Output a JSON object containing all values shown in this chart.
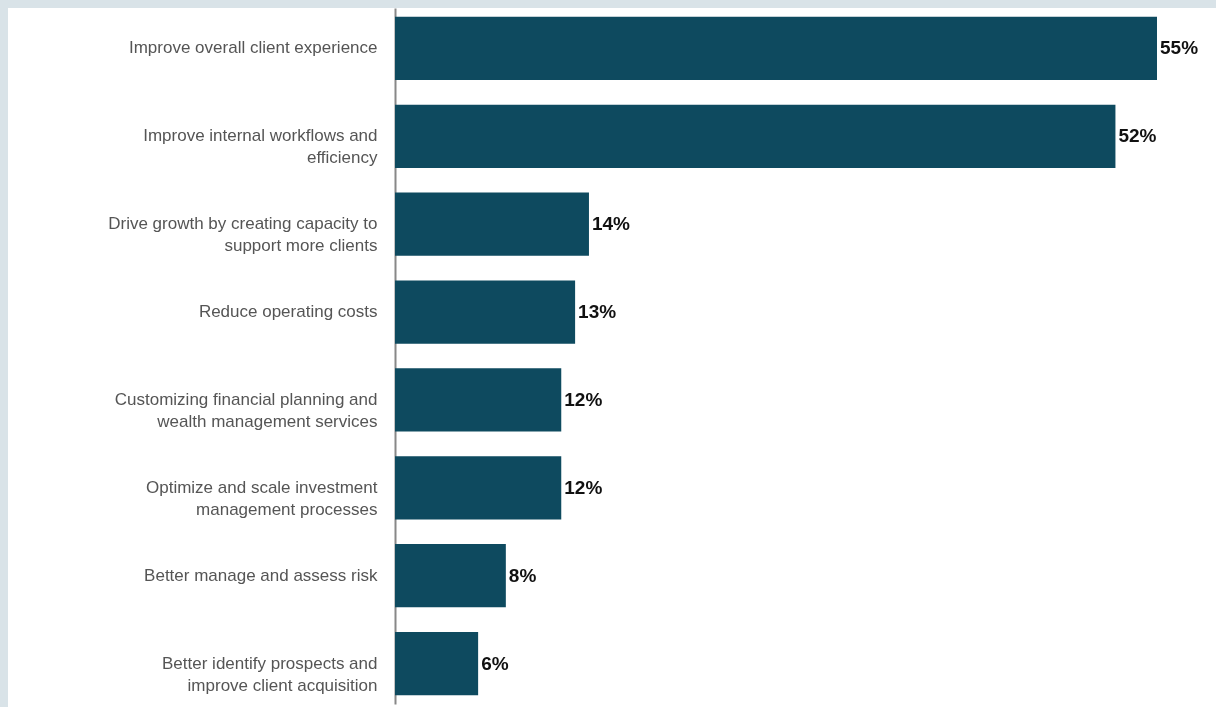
{
  "chart_data": {
    "type": "bar",
    "orientation": "horizontal",
    "categories": [
      "Improve overall client experience",
      "Improve internal workflows and efficiency",
      "Drive growth by creating capacity to support more clients",
      "Reduce operating costs",
      "Customizing financial planning and wealth management services",
      "Optimize and scale investment management processes",
      "Better manage and assess risk",
      "Better identify prospects and improve client acquisition"
    ],
    "values": [
      55,
      52,
      14,
      13,
      12,
      12,
      8,
      6
    ],
    "value_labels": [
      "55%",
      "52%",
      "14%",
      "13%",
      "12%",
      "12%",
      "8%",
      "6%"
    ],
    "color": "#0e4a5f"
  }
}
